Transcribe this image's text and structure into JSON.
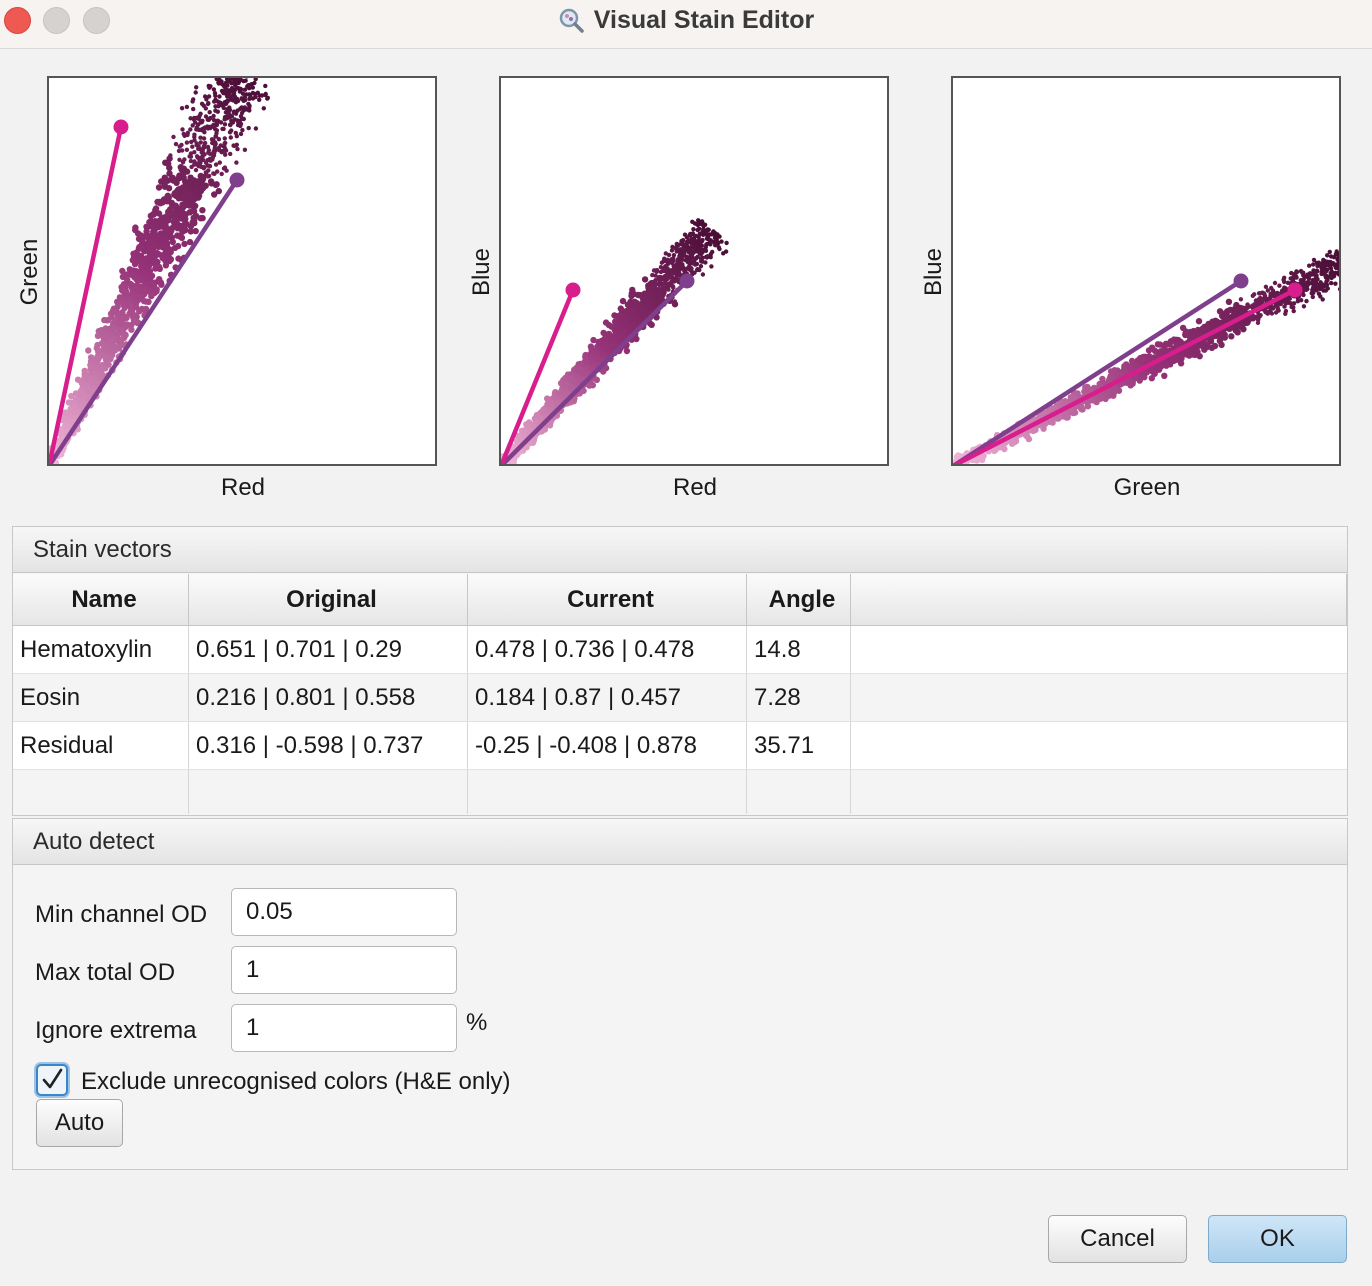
{
  "window": {
    "title": "Visual Stain Editor",
    "icon": "magnifier-icon"
  },
  "plots": [
    {
      "xlabel": "Red",
      "ylabel": "Green"
    },
    {
      "xlabel": "Red",
      "ylabel": "Blue"
    },
    {
      "xlabel": "Green",
      "ylabel": "Blue"
    }
  ],
  "colors": {
    "hematoxylin": "#7f3f8c",
    "eosin": "#d71e8c",
    "point_dark": "#4a0e36",
    "point_light": "#f2b8da"
  },
  "stain_vectors": {
    "title": "Stain vectors",
    "columns": [
      "Name",
      "Original",
      "Current",
      "Angle"
    ],
    "rows": [
      {
        "name": "Hematoxylin",
        "original": "0.651 | 0.701 | 0.29",
        "current": "0.478 | 0.736 | 0.478",
        "angle": "14.8"
      },
      {
        "name": "Eosin",
        "original": "0.216 | 0.801 | 0.558",
        "current": "0.184 | 0.87 | 0.457",
        "angle": "7.28"
      },
      {
        "name": "Residual",
        "original": "0.316 | -0.598 | 0.737",
        "current": "-0.25 | -0.408 | 0.878",
        "angle": "35.71"
      }
    ]
  },
  "auto_detect": {
    "title": "Auto detect",
    "min_channel_od": {
      "label": "Min channel OD",
      "value": "0.05"
    },
    "max_total_od": {
      "label": "Max total OD",
      "value": "1"
    },
    "ignore_extrema": {
      "label": "Ignore extrema",
      "value": "1",
      "unit": "%"
    },
    "exclude_unrecognised": {
      "label": "Exclude unrecognised colors (H&E only)",
      "checked": true
    },
    "auto_button": "Auto"
  },
  "buttons": {
    "cancel": "Cancel",
    "ok": "OK"
  }
}
